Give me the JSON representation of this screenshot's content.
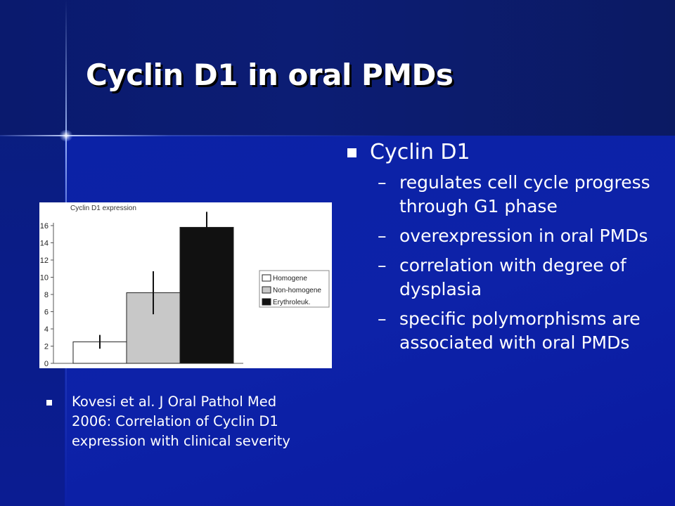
{
  "slide": {
    "title": "Cyclin D1 in oral PMDs",
    "main_bullet": "Cyclin D1",
    "sub_bullets": [
      "regulates cell cycle progress through G1 phase",
      "overexpression in oral PMDs",
      "correlation with degree of dysplasia",
      "specific polymorphisms are associated with oral PMDs"
    ],
    "caption": "Kovesi et al. J Oral Pathol Med 2006: Correlation of Cyclin D1 expression with clinical severity",
    "dash_glyph": "–",
    "colors": {
      "background": "#0d1a9a",
      "text": "#ffffff",
      "bar_homogene": "#ffffff",
      "bar_non_homogene": "#c8c8c8",
      "bar_erythroleuk": "#111111"
    }
  },
  "chart_data": {
    "type": "bar",
    "title": "Cyclin D1 expression",
    "xlabel": "",
    "ylabel": "",
    "ylim": [
      0,
      16
    ],
    "yticks": [
      0,
      2,
      4,
      6,
      8,
      10,
      12,
      14,
      16
    ],
    "categories": [
      "Homogene",
      "Non-homogene",
      "Erythroleuk."
    ],
    "values": [
      2.5,
      8.2,
      15.8
    ],
    "error": [
      0.8,
      2.5,
      1.8
    ],
    "colors": [
      "#ffffff",
      "#c8c8c8",
      "#111111"
    ],
    "legend": [
      "Homogene",
      "Non-homogene",
      "Erythroleuk."
    ],
    "legend_position": "right",
    "grid": false
  }
}
